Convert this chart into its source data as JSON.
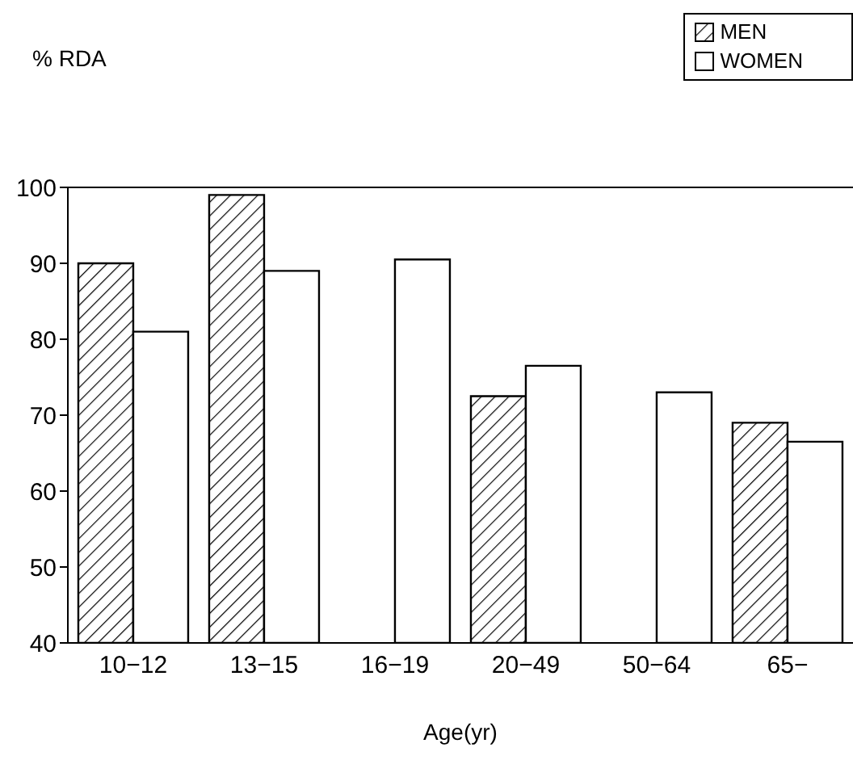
{
  "chart_data": {
    "type": "bar",
    "xlabel": "Age(yr)",
    "ylabel": "% RDA",
    "categories": [
      "10−12",
      "13−15",
      "16−19",
      "20−49",
      "50−64",
      "65−"
    ],
    "series": [
      {
        "name": "MEN",
        "color": "#000000",
        "values": [
          90,
          99,
          null,
          72.5,
          null,
          69
        ]
      },
      {
        "name": "WOMEN",
        "color": "#ffffff",
        "values": [
          81,
          89,
          90.5,
          76.5,
          73,
          66.5
        ]
      }
    ],
    "ylim": [
      40,
      100
    ],
    "yticks": [
      40,
      50,
      60,
      70,
      80,
      90,
      100
    ],
    "legend": "top right"
  }
}
